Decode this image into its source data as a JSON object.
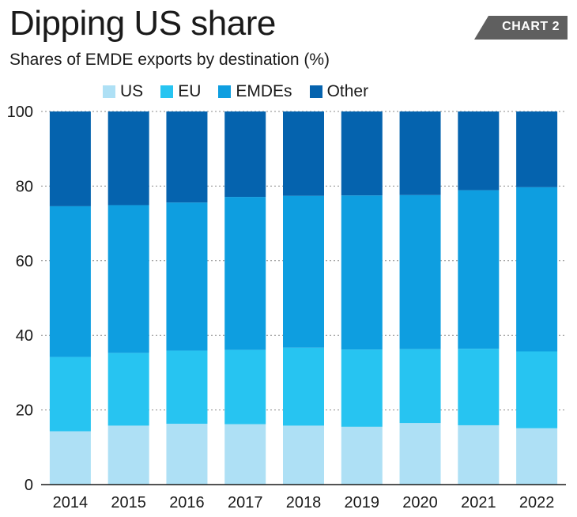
{
  "header": {
    "title": "Dipping US share",
    "subtitle": "Shares of EMDE exports by destination (%)",
    "badge": "CHART 2"
  },
  "colors": {
    "badge_bg": "#5f5f5f"
  },
  "chart_data": {
    "type": "bar",
    "stacked": true,
    "categories": [
      "2014",
      "2015",
      "2016",
      "2017",
      "2018",
      "2019",
      "2020",
      "2021",
      "2022"
    ],
    "series": [
      {
        "name": "US",
        "color": "#aee0f5",
        "values": [
          14.3,
          15.8,
          16.3,
          16.2,
          15.8,
          15.5,
          16.5,
          15.9,
          15.1
        ]
      },
      {
        "name": "EU",
        "color": "#27c4f1",
        "values": [
          19.9,
          19.5,
          19.6,
          19.9,
          20.9,
          20.7,
          19.8,
          20.5,
          20.6
        ]
      },
      {
        "name": "EMDEs",
        "color": "#0e9ee0",
        "values": [
          40.4,
          39.6,
          39.7,
          41.0,
          40.7,
          41.3,
          41.3,
          42.5,
          44.0
        ]
      },
      {
        "name": "Other",
        "color": "#0563ae",
        "values": [
          25.4,
          25.1,
          24.4,
          22.9,
          22.6,
          22.5,
          22.4,
          21.1,
          20.3
        ]
      }
    ],
    "ylim": [
      0,
      100
    ],
    "yticks": [
      0,
      20,
      40,
      60,
      80,
      100
    ],
    "xlabel": "",
    "ylabel": "",
    "grid": true,
    "legend_position": "top"
  }
}
